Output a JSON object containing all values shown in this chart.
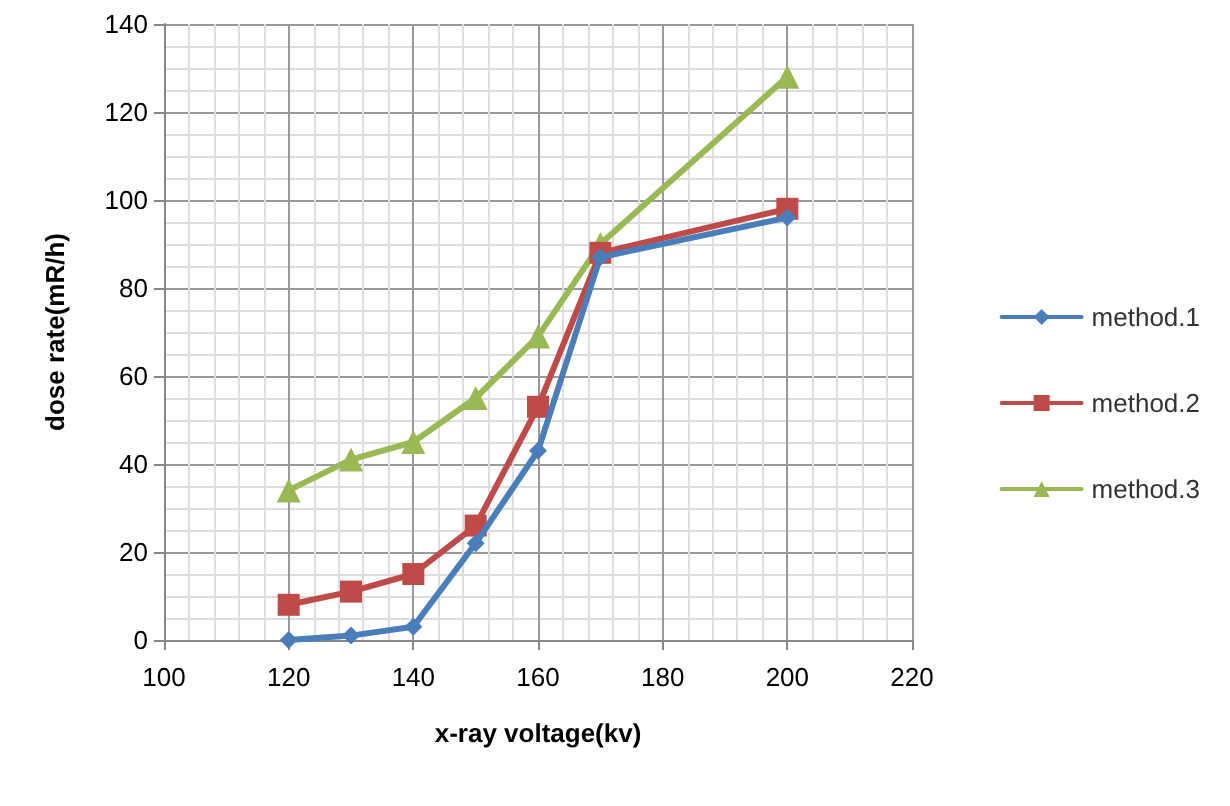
{
  "chart_data": {
    "type": "line",
    "xlabel": "x-ray voltage(kv)",
    "ylabel": "dose rate(mR/h)",
    "x": [
      120,
      130,
      140,
      150,
      160,
      170,
      200
    ],
    "series": [
      {
        "name": "method.1",
        "color": "#4a7ebb",
        "marker": "diamond",
        "values": [
          0,
          1,
          3,
          22,
          43,
          87,
          96
        ]
      },
      {
        "name": "method.2",
        "color": "#be4b48",
        "marker": "square",
        "values": [
          8,
          11,
          15,
          26,
          53,
          88,
          98
        ]
      },
      {
        "name": "method.3",
        "color": "#98b954",
        "marker": "triangle",
        "values": [
          34,
          41,
          45,
          55,
          69,
          90,
          128
        ]
      }
    ],
    "xlim": [
      100,
      220
    ],
    "xticks": [
      100,
      120,
      140,
      160,
      180,
      200,
      220
    ],
    "ylim": [
      0,
      140
    ],
    "yticks": [
      0,
      20,
      40,
      60,
      80,
      100,
      120,
      140
    ],
    "grid": true,
    "legend": "right",
    "line_style": "solid"
  }
}
